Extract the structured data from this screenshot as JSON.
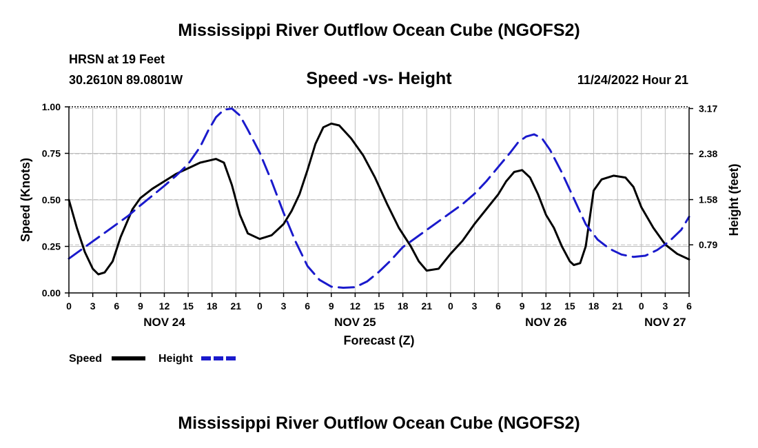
{
  "page": {
    "title_top": "Mississippi River Outflow Ocean Cube (NGOFS2)",
    "title_bottom": "Mississippi River Outflow Ocean Cube (NGOFS2)",
    "station": "HRSN at 19 Feet",
    "coords": "30.2610N  89.0801W",
    "datetime": "11/24/2022 Hour 21"
  },
  "colors": {
    "speed": "#000000",
    "height": "#1a1acc",
    "grid": "#bdbdbd"
  },
  "chart_data": {
    "type": "line",
    "title": "Speed -vs- Height",
    "xlabel": "Forecast (Z)",
    "ylabel": "Speed (Knots)",
    "y2label": "Height (feet)",
    "xlim": [
      0,
      78
    ],
    "ylim": [
      0,
      1.0
    ],
    "y2lim": [
      -0.05,
      3.2
    ],
    "x_ticks": [
      0,
      3,
      6,
      9,
      12,
      15,
      18,
      21,
      24,
      27,
      30,
      33,
      36,
      39,
      42,
      45,
      48,
      51,
      54,
      57,
      60,
      63,
      66,
      69,
      72,
      75,
      78
    ],
    "x_tick_labels": [
      "0",
      "3",
      "6",
      "9",
      "12",
      "15",
      "18",
      "21",
      "0",
      "3",
      "6",
      "9",
      "12",
      "15",
      "18",
      "21",
      "0",
      "3",
      "6",
      "9",
      "12",
      "15",
      "18",
      "21",
      "0",
      "3",
      "6"
    ],
    "date_labels": [
      {
        "x": 12,
        "label": "NOV 24"
      },
      {
        "x": 36,
        "label": "NOV 25"
      },
      {
        "x": 60,
        "label": "NOV 26"
      },
      {
        "x": 75,
        "label": "NOV 27"
      }
    ],
    "y_ticks": [
      0,
      0.25,
      0.5,
      0.75,
      1.0
    ],
    "y_tick_labels": [
      "0.00",
      "0.25",
      "0.50",
      "0.75",
      "1.00"
    ],
    "y2_ticks": [
      0.79,
      1.58,
      2.38,
      3.17
    ],
    "y2_tick_labels": [
      "0.79",
      "1.58",
      "2.38",
      "3.17"
    ],
    "legend": [
      {
        "name": "Speed",
        "style": "solid"
      },
      {
        "name": "Height",
        "style": "dashed"
      }
    ],
    "series": [
      {
        "name": "Speed",
        "axis": "left",
        "x": [
          0,
          1,
          2,
          3,
          3.7,
          4.5,
          5.5,
          6.5,
          8,
          9,
          10.5,
          12,
          13.5,
          15,
          16.5,
          17.5,
          18.5,
          19.5,
          20.5,
          21.5,
          22.5,
          24,
          25.5,
          27,
          28,
          29,
          30,
          31,
          32,
          33,
          34,
          35.5,
          37,
          38.5,
          40,
          41.5,
          43,
          44,
          45,
          46.5,
          48,
          49.5,
          51,
          52.5,
          54,
          55,
          56,
          57,
          58,
          59,
          60,
          61,
          62,
          63,
          63.5,
          64.3,
          65,
          66,
          67,
          68.5,
          70,
          71,
          72,
          73.5,
          75,
          76.5,
          78
        ],
        "values": [
          0.5,
          0.35,
          0.22,
          0.13,
          0.1,
          0.11,
          0.17,
          0.3,
          0.45,
          0.51,
          0.56,
          0.6,
          0.64,
          0.67,
          0.7,
          0.71,
          0.72,
          0.7,
          0.58,
          0.42,
          0.32,
          0.29,
          0.31,
          0.37,
          0.44,
          0.53,
          0.66,
          0.8,
          0.89,
          0.91,
          0.9,
          0.83,
          0.74,
          0.62,
          0.48,
          0.35,
          0.25,
          0.17,
          0.12,
          0.13,
          0.21,
          0.28,
          0.37,
          0.45,
          0.53,
          0.6,
          0.65,
          0.66,
          0.62,
          0.53,
          0.42,
          0.35,
          0.25,
          0.17,
          0.15,
          0.16,
          0.25,
          0.55,
          0.61,
          0.63,
          0.62,
          0.57,
          0.46,
          0.35,
          0.26,
          0.21,
          0.18
        ]
      },
      {
        "name": "Height",
        "axis": "right",
        "x": [
          0,
          1.5,
          3,
          4.5,
          6,
          7.5,
          9,
          10.5,
          12,
          13.5,
          15,
          16.5,
          17.5,
          18.5,
          19.5,
          20.5,
          21.5,
          22.5,
          24,
          25.5,
          27,
          28.5,
          30,
          31.5,
          33,
          34.5,
          36,
          37.5,
          39,
          40.5,
          42,
          43.5,
          45,
          46.5,
          48,
          49.5,
          51,
          52.5,
          54,
          55.5,
          56.5,
          57.5,
          58.5,
          59.5,
          60.5,
          62,
          63.5,
          65,
          66.5,
          68,
          69.5,
          71,
          72.5,
          74,
          75.5,
          77,
          78
        ],
        "values": [
          0.55,
          0.7,
          0.85,
          1.0,
          1.15,
          1.3,
          1.48,
          1.65,
          1.82,
          2.0,
          2.2,
          2.5,
          2.78,
          3.02,
          3.15,
          3.17,
          3.05,
          2.8,
          2.4,
          1.9,
          1.35,
          0.85,
          0.42,
          0.18,
          0.06,
          0.04,
          0.05,
          0.15,
          0.32,
          0.52,
          0.75,
          0.9,
          1.05,
          1.2,
          1.35,
          1.5,
          1.68,
          1.9,
          2.15,
          2.4,
          2.58,
          2.68,
          2.72,
          2.65,
          2.45,
          2.05,
          1.6,
          1.15,
          0.88,
          0.72,
          0.62,
          0.58,
          0.6,
          0.7,
          0.85,
          1.05,
          1.28
        ]
      }
    ]
  }
}
